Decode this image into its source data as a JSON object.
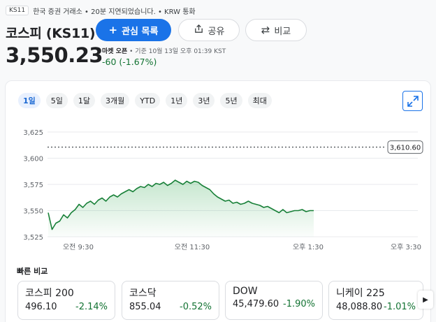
{
  "header": {
    "ticker_badge": "KS11",
    "meta_text": "한국 증권 거래소 • 20분 지연되었습니다. • KRW 통화",
    "title_name": "코스피",
    "title_symbol": "(KS11)",
    "follow_label": "관심 목록",
    "share_label": "공유",
    "compare_label": "비교"
  },
  "quote": {
    "price": "3,550.23",
    "market_state": "마켓 오픈",
    "timestamp": " • 기준 10월 13일 오후 01:39 KST",
    "change": "-60 (-1.67%)"
  },
  "ranges": [
    "1일",
    "5일",
    "1달",
    "3개월",
    "YTD",
    "1년",
    "3년",
    "5년",
    "최대"
  ],
  "active_range": "1일",
  "colors": {
    "accent": "#1a73e8",
    "positive": "#137333",
    "line": "#188038"
  },
  "chart_data": {
    "type": "line",
    "prev_close": 3610.6,
    "prev_close_label": "3,610.60",
    "ylim": [
      3525,
      3625
    ],
    "y_ticks": [
      "3,625",
      "3,600",
      "3,575",
      "3,550",
      "3,525"
    ],
    "x_ticks": [
      "오전 9:30",
      "오전 11:30",
      "오후 1:30",
      "오후 3:30"
    ],
    "series": [
      {
        "values": [
          3548,
          3532,
          3538,
          3540,
          3546,
          3543,
          3548,
          3551,
          3556,
          3553,
          3557,
          3559,
          3556,
          3560,
          3562,
          3559,
          3563,
          3565,
          3563,
          3566,
          3568,
          3570,
          3568,
          3571,
          3573,
          3572,
          3575,
          3573,
          3576,
          3575,
          3577,
          3574,
          3576,
          3579,
          3577,
          3575,
          3578,
          3576,
          3578,
          3577,
          3574,
          3572,
          3570,
          3566,
          3563,
          3561,
          3559,
          3560,
          3557,
          3558,
          3556,
          3557,
          3559,
          3557,
          3556,
          3555,
          3553,
          3554,
          3552,
          3550,
          3548,
          3551,
          3548,
          3549,
          3550,
          3550,
          3551,
          3549,
          3550,
          3550
        ]
      }
    ]
  },
  "quick_compare": {
    "title": "빠른 비교",
    "items": [
      {
        "name": "코스피 200",
        "value": "496.10",
        "change": "-2.14%"
      },
      {
        "name": "코스닥",
        "value": "855.04",
        "change": "-0.52%"
      },
      {
        "name": "DOW",
        "value": "45,479.60",
        "change": "-1.90%"
      },
      {
        "name": "니케이 225",
        "value": "48,088.80",
        "change": "-1.01%"
      }
    ]
  },
  "icons": {
    "follow": "plus-icon",
    "share": "share-icon",
    "compare": "compare-arrows-icon",
    "expand": "expand-icon",
    "next": "chevron-right-icon"
  }
}
